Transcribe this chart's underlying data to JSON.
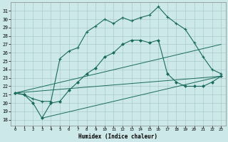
{
  "xlabel": "Humidex (Indice chaleur)",
  "bg_color": "#cce8e8",
  "grid_color": "#aacccc",
  "line_color": "#1a6b5e",
  "x_ticks": [
    0,
    1,
    2,
    3,
    4,
    5,
    6,
    7,
    8,
    9,
    10,
    11,
    12,
    13,
    14,
    15,
    16,
    17,
    18,
    19,
    20,
    21,
    22,
    23
  ],
  "y_ticks": [
    18,
    19,
    20,
    21,
    22,
    23,
    24,
    25,
    26,
    27,
    28,
    29,
    30,
    31
  ],
  "ylim": [
    17.3,
    32.0
  ],
  "xlim": [
    -0.5,
    23.5
  ],
  "line1_x": [
    0,
    1,
    2,
    3,
    4,
    5,
    6,
    7,
    8,
    9,
    10,
    11,
    12,
    13,
    14,
    15,
    16,
    17,
    18,
    19,
    20,
    21,
    22,
    23
  ],
  "line1_y": [
    21.2,
    21.0,
    20.5,
    20.2,
    20.2,
    25.3,
    26.2,
    26.6,
    28.5,
    29.2,
    30.0,
    29.5,
    30.2,
    29.8,
    30.2,
    30.5,
    31.5,
    30.3,
    29.5,
    28.8,
    27.2,
    25.5,
    24.0,
    23.5
  ],
  "line2_x": [
    0,
    1,
    2,
    3,
    4,
    5,
    6,
    7,
    8,
    9,
    10,
    11,
    12,
    13,
    14,
    15,
    16,
    17,
    18,
    19,
    20,
    21,
    22,
    23
  ],
  "line2_y": [
    21.2,
    21.0,
    20.0,
    18.2,
    20.0,
    20.2,
    21.5,
    22.5,
    23.5,
    24.2,
    25.5,
    26.0,
    27.0,
    27.5,
    27.5,
    27.2,
    27.5,
    23.5,
    22.5,
    22.0,
    22.0,
    22.0,
    22.5,
    23.2
  ],
  "line3_x": [
    0,
    23
  ],
  "line3_y": [
    21.2,
    27.0
  ],
  "line4_x": [
    0,
    23
  ],
  "line4_y": [
    21.2,
    23.2
  ],
  "line5_x": [
    3,
    23
  ],
  "line5_y": [
    18.2,
    23.2
  ]
}
